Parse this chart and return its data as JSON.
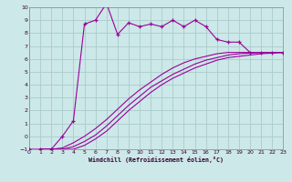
{
  "xlabel": "Windchill (Refroidissement éolien,°C)",
  "background_color": "#cce8e8",
  "grid_color": "#aacccc",
  "line_color": "#990099",
  "xlim": [
    0,
    23
  ],
  "ylim": [
    -1,
    10
  ],
  "xticks": [
    0,
    1,
    2,
    3,
    4,
    5,
    6,
    7,
    8,
    9,
    10,
    11,
    12,
    13,
    14,
    15,
    16,
    17,
    18,
    19,
    20,
    21,
    22,
    23
  ],
  "yticks": [
    -1,
    0,
    1,
    2,
    3,
    4,
    5,
    6,
    7,
    8,
    9,
    10
  ],
  "data_x": [
    0,
    1,
    2,
    3,
    4,
    5,
    6,
    7,
    8,
    9,
    10,
    11,
    12,
    13,
    14,
    15,
    16,
    17,
    18,
    19,
    20,
    21,
    22,
    23
  ],
  "data_y": [
    -1,
    -1,
    -1,
    0.0,
    1.2,
    8.7,
    9.0,
    10.3,
    7.9,
    8.8,
    8.5,
    8.7,
    8.5,
    9.0,
    8.5,
    9.0,
    8.5,
    7.5,
    7.3,
    7.3,
    6.5,
    6.5,
    6.5,
    6.5
  ],
  "curve1_x": [
    1,
    2,
    3,
    4,
    5,
    6,
    7,
    8,
    9,
    10,
    11,
    12,
    13,
    14,
    15,
    16,
    17,
    18,
    19,
    20,
    21,
    22,
    23
  ],
  "curve1_y": [
    -1,
    -1,
    -0.9,
    -0.5,
    0.0,
    0.6,
    1.3,
    2.1,
    2.9,
    3.6,
    4.2,
    4.8,
    5.3,
    5.7,
    6.0,
    6.2,
    6.4,
    6.5,
    6.5,
    6.5,
    6.5,
    6.5,
    6.5
  ],
  "curve2_x": [
    1,
    2,
    3,
    4,
    5,
    6,
    7,
    8,
    9,
    10,
    11,
    12,
    13,
    14,
    15,
    16,
    17,
    18,
    19,
    20,
    21,
    22,
    23
  ],
  "curve2_y": [
    -1,
    -1,
    -1,
    -0.8,
    -0.4,
    0.1,
    0.8,
    1.6,
    2.4,
    3.1,
    3.8,
    4.3,
    4.8,
    5.2,
    5.6,
    5.9,
    6.1,
    6.3,
    6.4,
    6.45,
    6.5,
    6.5,
    6.5
  ],
  "curve3_x": [
    1,
    2,
    3,
    4,
    5,
    6,
    7,
    8,
    9,
    10,
    11,
    12,
    13,
    14,
    15,
    16,
    17,
    18,
    19,
    20,
    21,
    22,
    23
  ],
  "curve3_y": [
    -1,
    -1,
    -1,
    -1,
    -0.7,
    -0.2,
    0.4,
    1.2,
    2.0,
    2.7,
    3.4,
    4.0,
    4.5,
    4.9,
    5.3,
    5.6,
    5.9,
    6.1,
    6.2,
    6.3,
    6.4,
    6.45,
    6.5
  ]
}
